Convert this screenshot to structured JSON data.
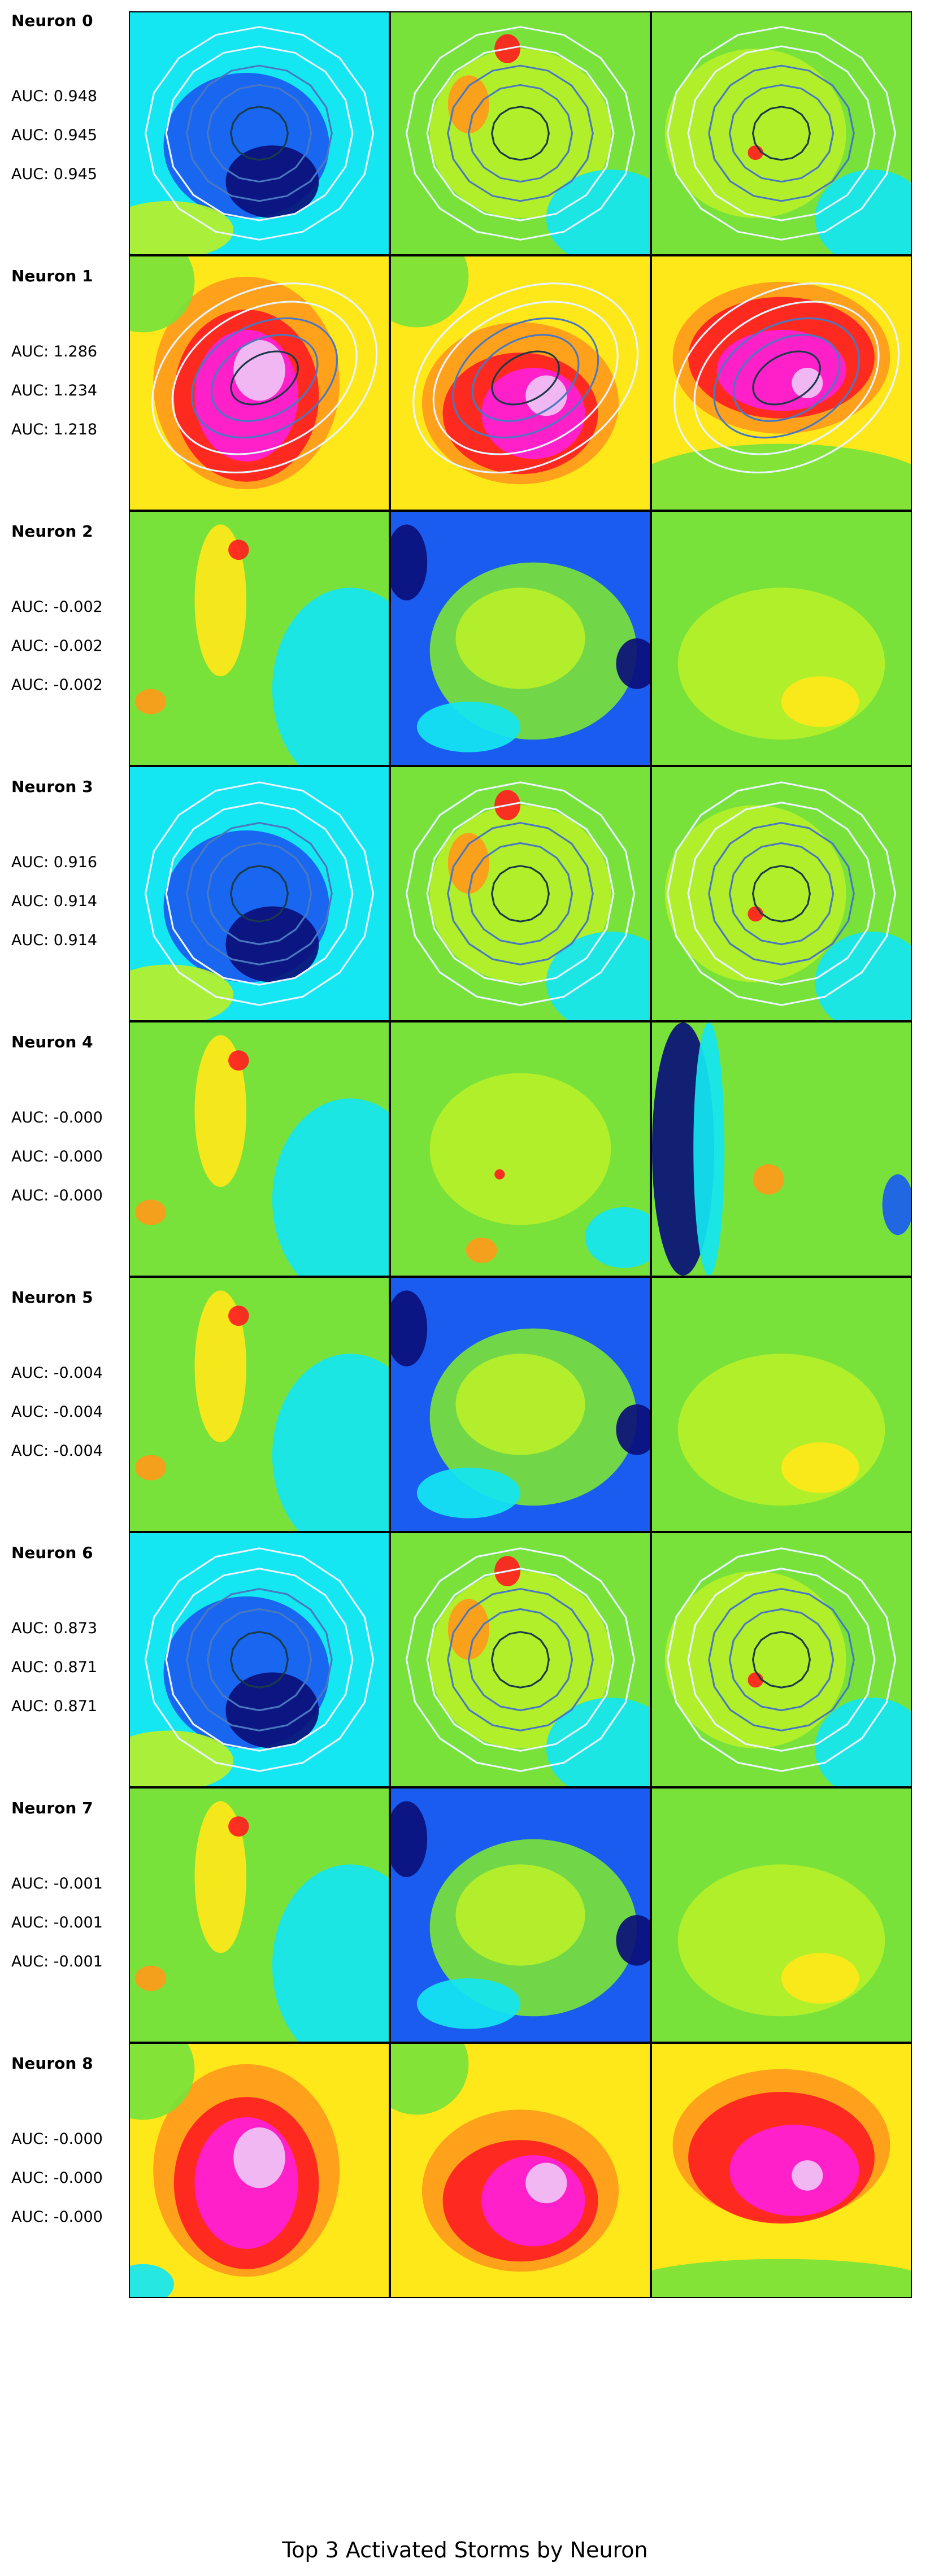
{
  "figure_title": "Top 3 Activated Storms by Neuron",
  "colors": {
    "navy": "#0a0f7a",
    "blue": "#1a5cf0",
    "cyan": "#14e6f2",
    "green": "#78e23a",
    "lime": "#b7f02a",
    "yellow": "#ffe81a",
    "orange": "#ff9a1a",
    "red": "#ff1f1f",
    "magenta": "#ff1fd9",
    "lavender": "#f0c4f5",
    "contour_dark": "#1a3a4a",
    "contour_mid": "#4a78c0",
    "contour_light": "#e8f4ff"
  },
  "neurons": [
    {
      "title": "Neuron 0",
      "auc": [
        "AUC: 0.948",
        "AUC: 0.945",
        "AUC: 0.945"
      ],
      "panels": [
        {
          "base": "cyan",
          "blobs": [
            [
              "blue",
              0.45,
              0.55,
              0.32,
              0.3
            ],
            [
              "navy",
              0.55,
              0.7,
              0.18,
              0.15
            ],
            [
              "lime",
              0.15,
              0.9,
              0.25,
              0.12
            ]
          ],
          "contour": "round"
        },
        {
          "base": "green",
          "blobs": [
            [
              "lime",
              0.5,
              0.5,
              0.35,
              0.35
            ],
            [
              "cyan",
              0.85,
              0.85,
              0.25,
              0.2
            ],
            [
              "red",
              0.45,
              0.15,
              0.05,
              0.06
            ],
            [
              "orange",
              0.3,
              0.38,
              0.08,
              0.12
            ]
          ],
          "contour": "round"
        },
        {
          "base": "green",
          "blobs": [
            [
              "lime",
              0.4,
              0.5,
              0.35,
              0.35
            ],
            [
              "cyan",
              0.85,
              0.85,
              0.22,
              0.2
            ],
            [
              "red",
              0.4,
              0.58,
              0.03,
              0.03
            ]
          ],
          "contour": "round"
        }
      ]
    },
    {
      "title": "Neuron 1",
      "auc": [
        "AUC: 1.286",
        "AUC: 1.234",
        "AUC: 1.218"
      ],
      "panels": [
        {
          "base": "yellow",
          "blobs": [
            [
              "orange",
              0.45,
              0.5,
              0.36,
              0.42
            ],
            [
              "red",
              0.45,
              0.55,
              0.28,
              0.34
            ],
            [
              "magenta",
              0.45,
              0.55,
              0.2,
              0.26
            ],
            [
              "lavender",
              0.5,
              0.45,
              0.1,
              0.12
            ],
            [
              "green",
              0.05,
              0.1,
              0.2,
              0.2
            ]
          ],
          "contour": "oval"
        },
        {
          "base": "yellow",
          "blobs": [
            [
              "orange",
              0.5,
              0.58,
              0.38,
              0.32
            ],
            [
              "red",
              0.5,
              0.62,
              0.3,
              0.24
            ],
            [
              "magenta",
              0.55,
              0.62,
              0.2,
              0.18
            ],
            [
              "lavender",
              0.6,
              0.55,
              0.08,
              0.08
            ],
            [
              "green",
              0.1,
              0.08,
              0.2,
              0.2
            ]
          ],
          "contour": "oval"
        },
        {
          "base": "yellow",
          "blobs": [
            [
              "orange",
              0.5,
              0.4,
              0.42,
              0.3
            ],
            [
              "red",
              0.5,
              0.4,
              0.36,
              0.24
            ],
            [
              "magenta",
              0.5,
              0.45,
              0.25,
              0.16
            ],
            [
              "lavender",
              0.6,
              0.5,
              0.06,
              0.06
            ],
            [
              "green",
              0.5,
              0.92,
              0.6,
              0.18
            ]
          ],
          "contour": "oval"
        }
      ]
    },
    {
      "title": "Neuron 2",
      "auc": [
        "AUC: -0.002",
        "AUC: -0.002",
        "AUC: -0.002"
      ],
      "panels": [
        {
          "base": "green",
          "blobs": [
            [
              "cyan",
              0.85,
              0.7,
              0.3,
              0.4
            ],
            [
              "yellow",
              0.35,
              0.35,
              0.1,
              0.3
            ],
            [
              "red",
              0.42,
              0.15,
              0.04,
              0.04
            ],
            [
              "orange",
              0.08,
              0.75,
              0.06,
              0.05
            ]
          ],
          "contour": "none"
        },
        {
          "base": "blue",
          "blobs": [
            [
              "green",
              0.55,
              0.55,
              0.4,
              0.35
            ],
            [
              "lime",
              0.5,
              0.5,
              0.25,
              0.2
            ],
            [
              "navy",
              0.06,
              0.2,
              0.08,
              0.15
            ],
            [
              "navy",
              0.95,
              0.6,
              0.08,
              0.1
            ],
            [
              "cyan",
              0.3,
              0.85,
              0.2,
              0.1
            ]
          ],
          "contour": "none"
        },
        {
          "base": "green",
          "blobs": [
            [
              "lime",
              0.5,
              0.6,
              0.4,
              0.3
            ],
            [
              "yellow",
              0.65,
              0.75,
              0.15,
              0.1
            ]
          ],
          "contour": "none"
        }
      ]
    },
    {
      "title": "Neuron 3",
      "auc": [
        "AUC: 0.916",
        "AUC: 0.914",
        "AUC: 0.914"
      ],
      "panels": [
        {
          "base": "cyan",
          "blobs": [
            [
              "blue",
              0.45,
              0.55,
              0.32,
              0.3
            ],
            [
              "navy",
              0.55,
              0.7,
              0.18,
              0.15
            ],
            [
              "lime",
              0.15,
              0.9,
              0.25,
              0.12
            ]
          ],
          "contour": "round"
        },
        {
          "base": "green",
          "blobs": [
            [
              "lime",
              0.5,
              0.5,
              0.35,
              0.35
            ],
            [
              "cyan",
              0.85,
              0.85,
              0.25,
              0.2
            ],
            [
              "red",
              0.45,
              0.15,
              0.05,
              0.06
            ],
            [
              "orange",
              0.3,
              0.38,
              0.08,
              0.12
            ]
          ],
          "contour": "round"
        },
        {
          "base": "green",
          "blobs": [
            [
              "lime",
              0.4,
              0.5,
              0.35,
              0.35
            ],
            [
              "cyan",
              0.85,
              0.85,
              0.22,
              0.2
            ],
            [
              "red",
              0.4,
              0.58,
              0.03,
              0.03
            ]
          ],
          "contour": "round"
        }
      ]
    },
    {
      "title": "Neuron 4",
      "auc": [
        "AUC: -0.000",
        "AUC: -0.000",
        "AUC: -0.000"
      ],
      "panels": [
        {
          "base": "green",
          "blobs": [
            [
              "cyan",
              0.85,
              0.7,
              0.3,
              0.4
            ],
            [
              "yellow",
              0.35,
              0.35,
              0.1,
              0.3
            ],
            [
              "red",
              0.42,
              0.15,
              0.04,
              0.04
            ],
            [
              "orange",
              0.08,
              0.75,
              0.06,
              0.05
            ]
          ],
          "contour": "none"
        },
        {
          "base": "green",
          "blobs": [
            [
              "lime",
              0.5,
              0.5,
              0.35,
              0.3
            ],
            [
              "cyan",
              0.9,
              0.85,
              0.15,
              0.12
            ],
            [
              "red",
              0.42,
              0.6,
              0.02,
              0.02
            ],
            [
              "orange",
              0.35,
              0.9,
              0.06,
              0.05
            ]
          ],
          "contour": "none"
        },
        {
          "base": "green",
          "blobs": [
            [
              "navy",
              0.12,
              0.5,
              0.12,
              0.5
            ],
            [
              "cyan",
              0.22,
              0.5,
              0.06,
              0.5
            ],
            [
              "blue",
              0.95,
              0.72,
              0.06,
              0.12
            ],
            [
              "orange",
              0.45,
              0.62,
              0.06,
              0.06
            ]
          ],
          "contour": "none"
        }
      ]
    },
    {
      "title": "Neuron 5",
      "auc": [
        "AUC: -0.004",
        "AUC: -0.004",
        "AUC: -0.004"
      ],
      "panels": [
        {
          "base": "green",
          "blobs": [
            [
              "cyan",
              0.85,
              0.7,
              0.3,
              0.4
            ],
            [
              "yellow",
              0.35,
              0.35,
              0.1,
              0.3
            ],
            [
              "red",
              0.42,
              0.15,
              0.04,
              0.04
            ],
            [
              "orange",
              0.08,
              0.75,
              0.06,
              0.05
            ]
          ],
          "contour": "none"
        },
        {
          "base": "blue",
          "blobs": [
            [
              "green",
              0.55,
              0.55,
              0.4,
              0.35
            ],
            [
              "lime",
              0.5,
              0.5,
              0.25,
              0.2
            ],
            [
              "navy",
              0.06,
              0.2,
              0.08,
              0.15
            ],
            [
              "navy",
              0.95,
              0.6,
              0.08,
              0.1
            ],
            [
              "cyan",
              0.3,
              0.85,
              0.2,
              0.1
            ]
          ],
          "contour": "none"
        },
        {
          "base": "green",
          "blobs": [
            [
              "lime",
              0.5,
              0.6,
              0.4,
              0.3
            ],
            [
              "yellow",
              0.65,
              0.75,
              0.15,
              0.1
            ]
          ],
          "contour": "none"
        }
      ]
    },
    {
      "title": "Neuron 6",
      "auc": [
        "AUC: 0.873",
        "AUC: 0.871",
        "AUC: 0.871"
      ],
      "panels": [
        {
          "base": "cyan",
          "blobs": [
            [
              "blue",
              0.45,
              0.55,
              0.32,
              0.3
            ],
            [
              "navy",
              0.55,
              0.7,
              0.18,
              0.15
            ],
            [
              "lime",
              0.15,
              0.9,
              0.25,
              0.12
            ]
          ],
          "contour": "round"
        },
        {
          "base": "green",
          "blobs": [
            [
              "lime",
              0.5,
              0.5,
              0.35,
              0.35
            ],
            [
              "cyan",
              0.85,
              0.85,
              0.25,
              0.2
            ],
            [
              "red",
              0.45,
              0.15,
              0.05,
              0.06
            ],
            [
              "orange",
              0.3,
              0.38,
              0.08,
              0.12
            ]
          ],
          "contour": "round"
        },
        {
          "base": "green",
          "blobs": [
            [
              "lime",
              0.4,
              0.5,
              0.35,
              0.35
            ],
            [
              "cyan",
              0.85,
              0.85,
              0.22,
              0.2
            ],
            [
              "red",
              0.4,
              0.58,
              0.03,
              0.03
            ]
          ],
          "contour": "round"
        }
      ]
    },
    {
      "title": "Neuron 7",
      "auc": [
        "AUC: -0.001",
        "AUC: -0.001",
        "AUC: -0.001"
      ],
      "panels": [
        {
          "base": "green",
          "blobs": [
            [
              "cyan",
              0.85,
              0.7,
              0.3,
              0.4
            ],
            [
              "yellow",
              0.35,
              0.35,
              0.1,
              0.3
            ],
            [
              "red",
              0.42,
              0.15,
              0.04,
              0.04
            ],
            [
              "orange",
              0.08,
              0.75,
              0.06,
              0.05
            ]
          ],
          "contour": "none"
        },
        {
          "base": "blue",
          "blobs": [
            [
              "green",
              0.55,
              0.55,
              0.4,
              0.35
            ],
            [
              "lime",
              0.5,
              0.5,
              0.25,
              0.2
            ],
            [
              "navy",
              0.06,
              0.2,
              0.08,
              0.15
            ],
            [
              "navy",
              0.95,
              0.6,
              0.08,
              0.1
            ],
            [
              "cyan",
              0.3,
              0.85,
              0.2,
              0.1
            ]
          ],
          "contour": "none"
        },
        {
          "base": "green",
          "blobs": [
            [
              "lime",
              0.5,
              0.6,
              0.4,
              0.3
            ],
            [
              "yellow",
              0.65,
              0.75,
              0.15,
              0.1
            ]
          ],
          "contour": "none"
        }
      ]
    },
    {
      "title": "Neuron 8",
      "auc": [
        "AUC: -0.000",
        "AUC: -0.000",
        "AUC: -0.000"
      ],
      "panels": [
        {
          "base": "yellow",
          "blobs": [
            [
              "orange",
              0.45,
              0.5,
              0.36,
              0.42
            ],
            [
              "red",
              0.45,
              0.55,
              0.28,
              0.34
            ],
            [
              "magenta",
              0.45,
              0.55,
              0.2,
              0.26
            ],
            [
              "lavender",
              0.5,
              0.45,
              0.1,
              0.12
            ],
            [
              "green",
              0.05,
              0.1,
              0.2,
              0.2
            ],
            [
              "cyan",
              0.05,
              0.95,
              0.12,
              0.08
            ]
          ],
          "contour": "none"
        },
        {
          "base": "yellow",
          "blobs": [
            [
              "orange",
              0.5,
              0.58,
              0.38,
              0.32
            ],
            [
              "red",
              0.5,
              0.62,
              0.3,
              0.24
            ],
            [
              "magenta",
              0.55,
              0.62,
              0.2,
              0.18
            ],
            [
              "lavender",
              0.6,
              0.55,
              0.08,
              0.08
            ],
            [
              "green",
              0.1,
              0.08,
              0.2,
              0.2
            ]
          ],
          "contour": "none"
        },
        {
          "base": "yellow",
          "blobs": [
            [
              "orange",
              0.5,
              0.4,
              0.42,
              0.3
            ],
            [
              "red",
              0.5,
              0.45,
              0.36,
              0.26
            ],
            [
              "magenta",
              0.55,
              0.5,
              0.25,
              0.18
            ],
            [
              "lavender",
              0.6,
              0.52,
              0.06,
              0.06
            ],
            [
              "green",
              0.5,
              0.95,
              0.6,
              0.1
            ]
          ],
          "contour": "none"
        }
      ]
    }
  ]
}
